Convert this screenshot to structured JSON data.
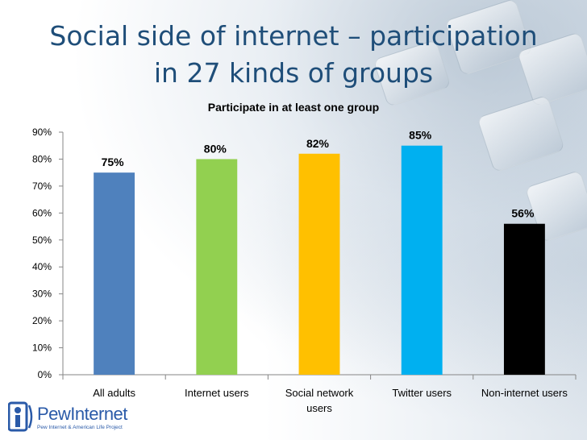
{
  "slide": {
    "title_line1": "Social side of internet – participation",
    "title_line2": "in 27 kinds of groups"
  },
  "logo": {
    "name_part1": "Pew",
    "name_part2": "Internet",
    "tagline": "Pew Internet & American Life Project"
  },
  "chart_data": {
    "type": "bar",
    "title": "Participate in at least one group",
    "categories": [
      "All adults",
      "Internet users",
      "Social network users",
      "Twitter users",
      "Non-internet users"
    ],
    "category_lines": [
      [
        "All adults"
      ],
      [
        "Internet users"
      ],
      [
        "Social network",
        "users"
      ],
      [
        "Twitter users"
      ],
      [
        "Non-internet users"
      ]
    ],
    "values": [
      75,
      80,
      82,
      85,
      56
    ],
    "data_labels": [
      "75%",
      "80%",
      "82%",
      "85%",
      "56%"
    ],
    "colors": [
      "#4f81bd",
      "#92d050",
      "#ffc000",
      "#00b0f0",
      "#000000"
    ],
    "ylim": [
      0,
      90
    ],
    "yticks": [
      "0%",
      "10%",
      "20%",
      "30%",
      "40%",
      "50%",
      "60%",
      "70%",
      "80%",
      "90%"
    ],
    "xlabel": "",
    "ylabel": "",
    "grid": false,
    "legend": "none"
  }
}
